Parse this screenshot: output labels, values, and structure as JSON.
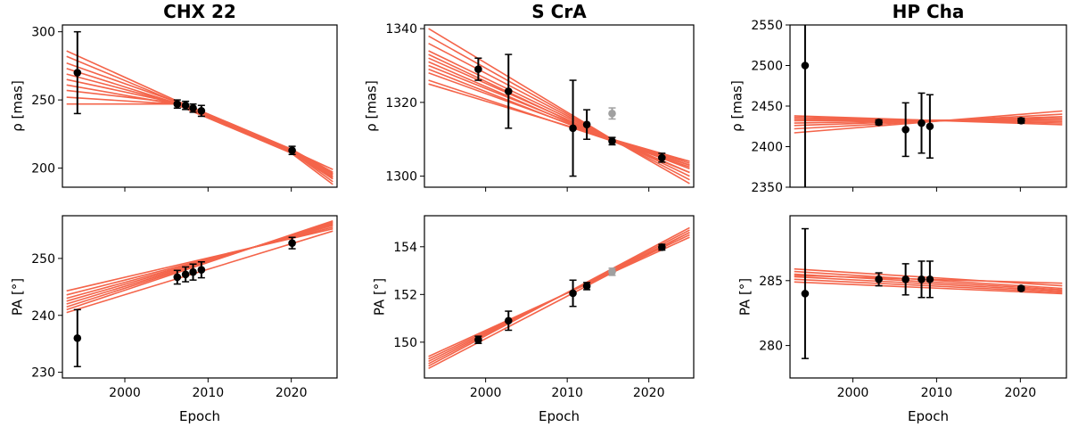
{
  "figure": {
    "xlabel": "Epoch"
  },
  "colors": {
    "fit": "#f4644a",
    "point": "#000000",
    "point_excluded": "#a0a0a0"
  },
  "chart_data": [
    {
      "type": "scatter",
      "target": "CHX 22",
      "title": "CHX 22",
      "panel": "separation",
      "xlabel": "",
      "ylabel": "ρ [mas]",
      "xlim": [
        1992.5,
        2025.5
      ],
      "ylim": [
        186,
        305
      ],
      "xticks": [
        2000,
        2010,
        2020
      ],
      "yticks": [
        200,
        250,
        300
      ],
      "show_xticklabels": false,
      "points": [
        {
          "x": 1994.3,
          "y": 270,
          "err": 30
        },
        {
          "x": 2006.3,
          "y": 247,
          "err": 3
        },
        {
          "x": 2007.3,
          "y": 246,
          "err": 3
        },
        {
          "x": 2008.2,
          "y": 244,
          "err": 3
        },
        {
          "x": 2009.2,
          "y": 242,
          "err": 4
        },
        {
          "x": 2020.1,
          "y": 213,
          "err": 3
        }
      ],
      "excluded_points": [],
      "fits": [
        [
          [
            1993,
            286
          ],
          [
            2006,
            250
          ],
          [
            2020,
            214
          ],
          [
            2025,
            197
          ]
        ],
        [
          [
            1993,
            282
          ],
          [
            2006,
            249
          ],
          [
            2020,
            213
          ],
          [
            2025,
            196
          ]
        ],
        [
          [
            1993,
            277
          ],
          [
            2006,
            249
          ],
          [
            2020,
            213
          ],
          [
            2025,
            195
          ]
        ],
        [
          [
            1993,
            273
          ],
          [
            2006,
            248
          ],
          [
            2020,
            212
          ],
          [
            2025,
            194
          ]
        ],
        [
          [
            1993,
            269
          ],
          [
            2006,
            248
          ],
          [
            2020,
            213
          ],
          [
            2025,
            196
          ]
        ],
        [
          [
            1993,
            265
          ],
          [
            2006,
            248
          ],
          [
            2020,
            212
          ],
          [
            2025,
            193
          ]
        ],
        [
          [
            1993,
            261
          ],
          [
            2006,
            247
          ],
          [
            2020,
            212
          ],
          [
            2025,
            192
          ]
        ],
        [
          [
            1993,
            257
          ],
          [
            2006,
            248
          ],
          [
            2020,
            213
          ],
          [
            2025,
            199
          ]
        ],
        [
          [
            1993,
            252
          ],
          [
            2006,
            247
          ],
          [
            2020,
            212
          ],
          [
            2025,
            190
          ]
        ],
        [
          [
            1993,
            247
          ],
          [
            2006,
            247
          ],
          [
            2020,
            211
          ],
          [
            2025,
            188
          ]
        ]
      ]
    },
    {
      "type": "scatter",
      "target": "S CrA",
      "title": "S CrA",
      "panel": "separation",
      "xlabel": "",
      "ylabel": "ρ [mas]",
      "xlim": [
        1992.5,
        2025.5
      ],
      "ylim": [
        1297,
        1341
      ],
      "xticks": [
        2000,
        2010,
        2020
      ],
      "yticks": [
        1300,
        1320,
        1340
      ],
      "show_xticklabels": false,
      "points": [
        {
          "x": 1999.1,
          "y": 1329,
          "err": 3
        },
        {
          "x": 2002.8,
          "y": 1323,
          "err": 10
        },
        {
          "x": 2010.7,
          "y": 1313,
          "err": 13
        },
        {
          "x": 2012.4,
          "y": 1314,
          "err": 4
        },
        {
          "x": 2015.5,
          "y": 1309.5,
          "err": 1
        },
        {
          "x": 2021.6,
          "y": 1305,
          "err": 1.2
        }
      ],
      "excluded_points": [
        {
          "x": 2015.5,
          "y": 1317,
          "err": 1.5
        }
      ],
      "fits": [
        [
          [
            1993,
            1340
          ],
          [
            2015.5,
            1310
          ],
          [
            2025,
            1298
          ]
        ],
        [
          [
            1993,
            1338
          ],
          [
            2015.5,
            1310
          ],
          [
            2025,
            1299
          ]
        ],
        [
          [
            1993,
            1336
          ],
          [
            2015.5,
            1310
          ],
          [
            2025,
            1300
          ]
        ],
        [
          [
            1993,
            1334
          ],
          [
            2015.5,
            1310
          ],
          [
            2025,
            1301
          ]
        ],
        [
          [
            1993,
            1333
          ],
          [
            2015.5,
            1309.5
          ],
          [
            2025,
            1301
          ]
        ],
        [
          [
            1993,
            1332
          ],
          [
            2015.5,
            1310
          ],
          [
            2025,
            1302
          ]
        ],
        [
          [
            1993,
            1331
          ],
          [
            2015.5,
            1309.5
          ],
          [
            2025,
            1302.5
          ]
        ],
        [
          [
            1993,
            1330
          ],
          [
            2015.5,
            1310
          ],
          [
            2025,
            1303
          ]
        ],
        [
          [
            1993,
            1329
          ],
          [
            2015.5,
            1309.5
          ],
          [
            2025,
            1303
          ]
        ],
        [
          [
            1993,
            1328
          ],
          [
            2015.5,
            1310
          ],
          [
            2025,
            1303.5
          ]
        ],
        [
          [
            1993,
            1326
          ],
          [
            2015.5,
            1309.5
          ],
          [
            2025,
            1304
          ]
        ],
        [
          [
            1993,
            1325
          ],
          [
            2015.5,
            1310
          ],
          [
            2025,
            1304
          ]
        ]
      ]
    },
    {
      "type": "scatter",
      "target": "HP Cha",
      "title": "HP Cha",
      "panel": "separation",
      "xlabel": "",
      "ylabel": "ρ [mas]",
      "xlim": [
        1992.5,
        2025.5
      ],
      "ylim": [
        2350,
        2550
      ],
      "xticks": [
        2000,
        2010,
        2020
      ],
      "yticks": [
        2350,
        2400,
        2450,
        2500,
        2550
      ],
      "show_xticklabels": false,
      "points": [
        {
          "x": 1994.3,
          "y": 2500,
          "err": 160
        },
        {
          "x": 2003.1,
          "y": 2430,
          "err": 3
        },
        {
          "x": 2006.3,
          "y": 2421,
          "err": 33
        },
        {
          "x": 2008.2,
          "y": 2429,
          "err": 37
        },
        {
          "x": 2009.2,
          "y": 2425,
          "err": 39
        },
        {
          "x": 2020.1,
          "y": 2432,
          "err": 3
        }
      ],
      "excluded_points": [],
      "fits": [
        [
          [
            1993,
            2417
          ],
          [
            2025,
            2444
          ]
        ],
        [
          [
            1993,
            2422
          ],
          [
            2025,
            2440
          ]
        ],
        [
          [
            1993,
            2426
          ],
          [
            2025,
            2437
          ]
        ],
        [
          [
            1993,
            2429
          ],
          [
            2025,
            2435
          ]
        ],
        [
          [
            1993,
            2432
          ],
          [
            2025,
            2433
          ]
        ],
        [
          [
            1993,
            2434
          ],
          [
            2025,
            2431
          ]
        ],
        [
          [
            1993,
            2436
          ],
          [
            2025,
            2429
          ]
        ],
        [
          [
            1993,
            2438
          ],
          [
            2025,
            2427
          ]
        ]
      ]
    },
    {
      "type": "scatter",
      "target": "CHX 22",
      "title": "",
      "panel": "position_angle",
      "xlabel": "Epoch",
      "ylabel": "PA [°]",
      "xlim": [
        1992.5,
        2025.5
      ],
      "ylim": [
        229,
        257.5
      ],
      "xticks": [
        2000,
        2010,
        2020
      ],
      "yticks": [
        230,
        240,
        250
      ],
      "show_xticklabels": true,
      "points": [
        {
          "x": 1994.3,
          "y": 236,
          "err": 5
        },
        {
          "x": 2006.3,
          "y": 246.7,
          "err": 1.2
        },
        {
          "x": 2007.3,
          "y": 247.2,
          "err": 1.3
        },
        {
          "x": 2008.2,
          "y": 247.6,
          "err": 1.4
        },
        {
          "x": 2009.2,
          "y": 248,
          "err": 1.4
        },
        {
          "x": 2020.1,
          "y": 252.7,
          "err": 1
        }
      ],
      "excluded_points": [],
      "fits": [
        [
          [
            1993,
            244.3
          ],
          [
            2025,
            255.2
          ]
        ],
        [
          [
            1993,
            243.6
          ],
          [
            2025,
            255.5
          ]
        ],
        [
          [
            1993,
            243.0
          ],
          [
            2025,
            255.8
          ]
        ],
        [
          [
            1993,
            242.5
          ],
          [
            2025,
            256.0
          ]
        ],
        [
          [
            1993,
            242.0
          ],
          [
            2025,
            256.2
          ]
        ],
        [
          [
            1993,
            241.5
          ],
          [
            2025,
            256.4
          ]
        ],
        [
          [
            1993,
            241.0
          ],
          [
            2025,
            256.6
          ]
        ],
        [
          [
            1993,
            240.5
          ],
          [
            2025,
            254.8
          ]
        ]
      ]
    },
    {
      "type": "scatter",
      "target": "S CrA",
      "title": "",
      "panel": "position_angle",
      "xlabel": "Epoch",
      "ylabel": "PA [°]",
      "xlim": [
        1992.5,
        2025.5
      ],
      "ylim": [
        148.5,
        155.3
      ],
      "xticks": [
        2000,
        2010,
        2020
      ],
      "yticks": [
        150,
        152,
        154
      ],
      "show_xticklabels": true,
      "points": [
        {
          "x": 1999.1,
          "y": 150.1,
          "err": 0.15
        },
        {
          "x": 2002.8,
          "y": 150.9,
          "err": 0.4
        },
        {
          "x": 2010.7,
          "y": 152.05,
          "err": 0.55
        },
        {
          "x": 2012.4,
          "y": 152.35,
          "err": 0.15
        },
        {
          "x": 2021.6,
          "y": 153.98,
          "err": 0.12
        }
      ],
      "excluded_points": [
        {
          "x": 2015.5,
          "y": 152.95,
          "err": 0.15
        }
      ],
      "fits": [
        [
          [
            1993,
            149.3
          ],
          [
            2025,
            154.5
          ]
        ],
        [
          [
            1993,
            149.2
          ],
          [
            2025,
            154.6
          ]
        ],
        [
          [
            1993,
            149.1
          ],
          [
            2025,
            154.7
          ]
        ],
        [
          [
            1993,
            149.0
          ],
          [
            2025,
            154.8
          ]
        ],
        [
          [
            1993,
            148.9
          ],
          [
            2025,
            154.6
          ]
        ],
        [
          [
            1993,
            149.4
          ],
          [
            2025,
            154.4
          ]
        ]
      ]
    },
    {
      "type": "scatter",
      "target": "HP Cha",
      "title": "",
      "panel": "position_angle",
      "xlabel": "Epoch",
      "ylabel": "PA [°]",
      "xlim": [
        1992.5,
        2025.5
      ],
      "ylim": [
        277.5,
        290
      ],
      "xticks": [
        2000,
        2010,
        2020
      ],
      "yticks": [
        280,
        285
      ],
      "show_xticklabels": true,
      "points": [
        {
          "x": 1994.3,
          "y": 284,
          "err": 5
        },
        {
          "x": 2003.1,
          "y": 285.1,
          "err": 0.5
        },
        {
          "x": 2006.3,
          "y": 285.1,
          "err": 1.2
        },
        {
          "x": 2008.2,
          "y": 285.1,
          "err": 1.4
        },
        {
          "x": 2009.2,
          "y": 285.1,
          "err": 1.4
        },
        {
          "x": 2020.1,
          "y": 284.4,
          "err": 0.15
        }
      ],
      "excluded_points": [],
      "fits": [
        [
          [
            1993,
            285.9
          ],
          [
            2025,
            284.6
          ]
        ],
        [
          [
            1993,
            285.7
          ],
          [
            2025,
            284.4
          ]
        ],
        [
          [
            1993,
            285.5
          ],
          [
            2025,
            284.3
          ]
        ],
        [
          [
            1993,
            285.3
          ],
          [
            2025,
            284.2
          ]
        ],
        [
          [
            1993,
            285.1
          ],
          [
            2025,
            284.1
          ]
        ],
        [
          [
            1993,
            284.9
          ],
          [
            2025,
            284.0
          ]
        ],
        [
          [
            1993,
            285.4
          ],
          [
            2025,
            284.8
          ]
        ]
      ]
    }
  ]
}
